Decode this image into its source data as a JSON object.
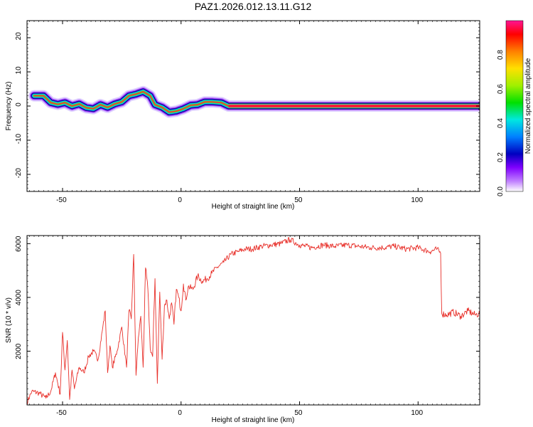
{
  "title": "PAZ1.2026.012.13.11.G12",
  "chart_data": [
    {
      "type": "heatmap",
      "xlabel": "Height of straight line (km)",
      "ylabel": "Frequency (Hz)",
      "xlim": [
        -65,
        126
      ],
      "ylim": [
        -25,
        25
      ],
      "xticks": [
        "-50",
        "0",
        "50",
        "100"
      ],
      "yticks": [
        "20",
        "10",
        "0",
        "-10",
        "-20"
      ],
      "colorbar": {
        "label": "Normalized spectral amplitude",
        "range": [
          0,
          1
        ],
        "ticks": [
          "0.0",
          "0.2",
          "0.4",
          "0.6",
          "0.8"
        ]
      },
      "ridge": [
        [
          -62,
          3.0
        ],
        [
          -58,
          3.0
        ],
        [
          -55,
          1.0
        ],
        [
          -52,
          0.5
        ],
        [
          -49,
          1.0
        ],
        [
          -46,
          0.0
        ],
        [
          -43,
          0.6
        ],
        [
          -40,
          -0.5
        ],
        [
          -37,
          -0.8
        ],
        [
          -34,
          0.4
        ],
        [
          -31,
          -0.4
        ],
        [
          -28,
          0.6
        ],
        [
          -25,
          1.2
        ],
        [
          -22,
          3.0
        ],
        [
          -19,
          3.5
        ],
        [
          -16,
          4.2
        ],
        [
          -13,
          3.0
        ],
        [
          -11,
          0.4
        ],
        [
          -8,
          -0.4
        ],
        [
          -5,
          -1.8
        ],
        [
          -2,
          -1.5
        ],
        [
          1,
          -0.8
        ],
        [
          4,
          0.2
        ],
        [
          7,
          0.4
        ],
        [
          10,
          1.2
        ],
        [
          13,
          1.2
        ],
        [
          17,
          1.0
        ],
        [
          20,
          0.0
        ],
        [
          30,
          0.0
        ],
        [
          45,
          0.0
        ],
        [
          60,
          0.0
        ],
        [
          75,
          0.0
        ],
        [
          90,
          0.0
        ],
        [
          105,
          0.0
        ],
        [
          126,
          0.0
        ]
      ]
    },
    {
      "type": "line",
      "xlabel": "Height of straight line (km)",
      "ylabel": "SNR (10 * v/v)",
      "xlim": [
        -65,
        126
      ],
      "ylim": [
        0,
        6300
      ],
      "xticks": [
        "-50",
        "0",
        "50",
        "100"
      ],
      "yticks": [
        "2000",
        "4000",
        "6000"
      ],
      "color": "#e8302a",
      "series": [
        {
          "x": [
            -65,
            -63,
            -60,
            -57,
            -55,
            -53,
            -51,
            -50,
            -49,
            -48,
            -47,
            -46,
            -45,
            -43,
            -41,
            -39,
            -37,
            -35,
            -33,
            -32,
            -31,
            -30,
            -29,
            -27,
            -25,
            -23,
            -22,
            -21,
            -20,
            -19,
            -18,
            -17,
            -16,
            -15,
            -14,
            -13,
            -12,
            -11,
            -10,
            -9,
            -8,
            -7,
            -6,
            -5,
            -4,
            -3,
            -2,
            -1,
            0,
            1,
            2,
            3,
            5,
            7,
            9,
            11,
            13,
            15,
            18,
            21,
            24,
            27,
            30,
            34,
            38,
            42,
            46,
            50,
            55,
            60,
            65,
            70,
            75,
            80,
            85,
            90,
            95,
            100,
            105,
            108,
            109.5,
            110,
            112,
            115,
            118,
            121,
            124,
            126
          ],
          "y": [
            100,
            500,
            450,
            250,
            500,
            1200,
            400,
            2700,
            1300,
            2400,
            200,
            1300,
            600,
            1400,
            1200,
            1800,
            2000,
            1700,
            2900,
            3500,
            1200,
            2200,
            1400,
            2000,
            2900,
            1400,
            3500,
            3200,
            5600,
            1100,
            2500,
            3300,
            1400,
            5100,
            4300,
            2100,
            1800,
            4700,
            800,
            4200,
            1700,
            3700,
            3900,
            3200,
            3800,
            3000,
            4300,
            4000,
            3500,
            4500,
            3900,
            4400,
            4300,
            4800,
            4600,
            4700,
            4900,
            5100,
            5300,
            5600,
            5700,
            5800,
            5800,
            5900,
            5950,
            6000,
            6150,
            5950,
            5850,
            5950,
            5900,
            5950,
            5900,
            5850,
            5850,
            5900,
            5800,
            5850,
            5700,
            5800,
            5650,
            3400,
            3350,
            3450,
            3300,
            3500,
            3350,
            3400
          ]
        }
      ]
    }
  ]
}
